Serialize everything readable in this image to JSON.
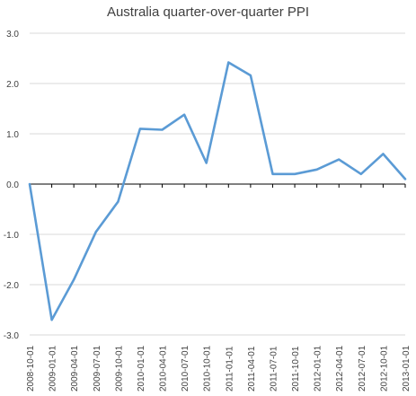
{
  "chart_data": {
    "type": "line",
    "title": "Australia quarter-over-quarter PPI",
    "xlabel": "",
    "ylabel": "",
    "categories": [
      "2008-10-01",
      "2009-01-01",
      "2009-04-01",
      "2009-07-01",
      "2009-10-01",
      "2010-01-01",
      "2010-04-01",
      "2010-07-01",
      "2010-10-01",
      "2011-01-01",
      "2011-04-01",
      "2011-07-01",
      "2011-10-01",
      "2012-01-01",
      "2012-04-01",
      "2012-07-01",
      "2012-10-01",
      "2013-01-01"
    ],
    "series": [
      {
        "values": [
          0.0,
          -2.7,
          -1.9,
          -0.95,
          -0.35,
          1.1,
          1.08,
          1.38,
          0.42,
          2.42,
          2.16,
          0.2,
          0.2,
          0.29,
          0.49,
          0.2,
          0.6,
          0.1
        ]
      }
    ],
    "ylim": [
      -3.0,
      3.0
    ],
    "yticks": [
      -3.0,
      -2.0,
      -1.0,
      0.0,
      1.0,
      2.0,
      3.0
    ],
    "ytick_labels": [
      "-3.0",
      "-2.0",
      "-1.0",
      "0.0",
      "1.0",
      "2.0",
      "3.0"
    ],
    "grid": true,
    "legend": "none",
    "colors": {
      "series": "#5B9BD5",
      "grid": "#D9D9D9",
      "axis": "#000000",
      "text": "#404040"
    }
  }
}
